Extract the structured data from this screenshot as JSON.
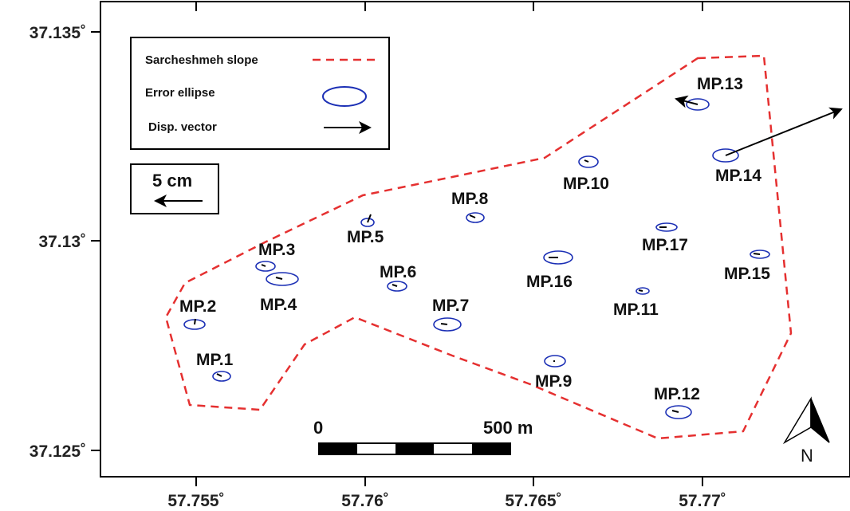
{
  "axes": {
    "x_ticks": [
      {
        "value": 57.755,
        "label": "57.755˚"
      },
      {
        "value": 57.76,
        "label": "57.76˚"
      },
      {
        "value": 57.765,
        "label": "57.765˚"
      },
      {
        "value": 57.77,
        "label": "57.77˚"
      }
    ],
    "y_ticks": [
      {
        "value": 37.135,
        "label": "37.135˚"
      },
      {
        "value": 37.13,
        "label": "37.13˚"
      },
      {
        "value": 37.125,
        "label": "37.125˚"
      }
    ]
  },
  "legend": {
    "slope_label": "Sarcheshmeh slope",
    "ellipse_label": "Error ellipse",
    "vector_label": "Disp. vector"
  },
  "vector_scale": {
    "label": "5 cm"
  },
  "scale_bar": {
    "start_label": "0",
    "end_label": "500 m"
  },
  "north_arrow": {
    "label": "N"
  },
  "colors": {
    "slope": "#e53030",
    "ellipse": "#1b2fb5",
    "vector": "#000000"
  },
  "points": [
    {
      "label": "MP.1"
    },
    {
      "label": "MP.2"
    },
    {
      "label": "MP.3"
    },
    {
      "label": "MP.4"
    },
    {
      "label": "MP.5"
    },
    {
      "label": "MP.6"
    },
    {
      "label": "MP.7"
    },
    {
      "label": "MP.8"
    },
    {
      "label": "MP.9"
    },
    {
      "label": "MP.10"
    },
    {
      "label": "MP.11"
    },
    {
      "label": "MP.12"
    },
    {
      "label": "MP.13"
    },
    {
      "label": "MP.14"
    },
    {
      "label": "MP.15"
    },
    {
      "label": "MP.16"
    },
    {
      "label": "MP.17"
    }
  ]
}
